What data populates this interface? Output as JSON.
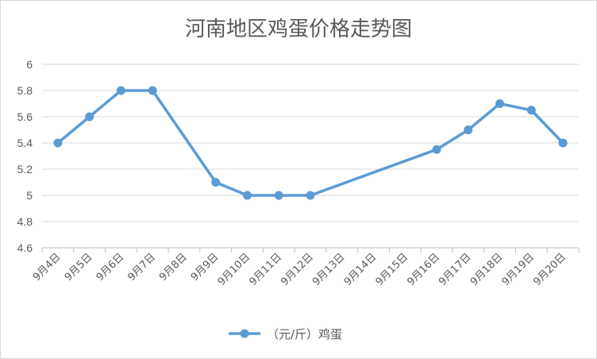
{
  "chart_data": {
    "type": "line",
    "title": "河南地区鸡蛋价格走势图",
    "categories": [
      "9月4日",
      "9月5日",
      "9月6日",
      "9月7日",
      "9月8日",
      "9月9日",
      "9月10日",
      "9月11日",
      "9月12日",
      "9月13日",
      "9月14日",
      "9月15日",
      "9月16日",
      "9月17日",
      "9月18日",
      "9月19日",
      "9月20日"
    ],
    "series": [
      {
        "name": "（元/斤）鸡蛋",
        "color": "#5b9bd5",
        "values": [
          5.4,
          5.6,
          5.8,
          5.8,
          null,
          5.1,
          5.0,
          5.0,
          5.0,
          null,
          null,
          null,
          5.35,
          5.5,
          5.7,
          5.65,
          5.4
        ]
      }
    ],
    "yticks": [
      "4.6",
      "4.8",
      "5",
      "5.2",
      "5.4",
      "5.6",
      "5.8",
      "6"
    ],
    "ylim": [
      4.6,
      6.0
    ],
    "grid": true,
    "legend_position": "bottom",
    "gaps_connected": true
  }
}
